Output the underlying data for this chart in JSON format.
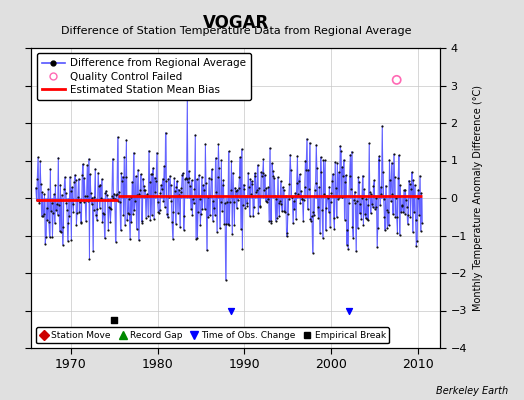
{
  "title": "VOGAR",
  "subtitle": "Difference of Station Temperature Data from Regional Average",
  "ylabel_right": "Monthly Temperature Anomaly Difference (°C)",
  "xlim": [
    1965.5,
    2012.5
  ],
  "ylim": [
    -4,
    4
  ],
  "yticks": [
    -4,
    -3,
    -2,
    -1,
    0,
    1,
    2,
    3,
    4
  ],
  "xticks": [
    1970,
    1980,
    1990,
    2000,
    2010
  ],
  "background_color": "#e0e0e0",
  "plot_bg_color": "#ffffff",
  "grid_color": "#c8c8c8",
  "line_color": "#5555ff",
  "dot_color": "#111111",
  "bias_color": "#ff0000",
  "bias_y_early": -0.05,
  "bias_y_late": 0.05,
  "bias_break_year": 1975.5,
  "empirical_break_x": 1975.0,
  "empirical_break_y": -3.25,
  "time_obs_change_x1": 1988.5,
  "time_obs_change_y1": -3.0,
  "time_obs_change_x2": 2002.0,
  "time_obs_change_y2": -3.0,
  "qc_failed_points": [
    [
      2007.5,
      3.15
    ]
  ],
  "watermark": "Berkeley Earth",
  "legend1_items": [
    "Difference from Regional Average",
    "Quality Control Failed",
    "Estimated Station Mean Bias"
  ],
  "legend2_items": [
    "Station Move",
    "Record Gap",
    "Time of Obs. Change",
    "Empirical Break"
  ],
  "seed": 42,
  "start_year": 1966.0,
  "end_year": 2010.5
}
